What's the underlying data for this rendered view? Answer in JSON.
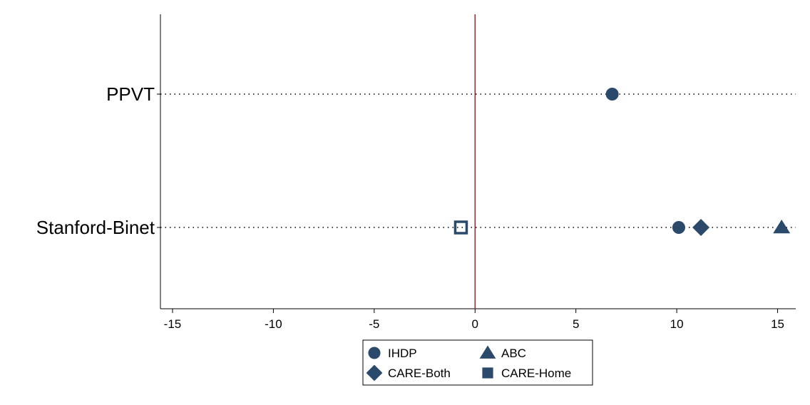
{
  "chart_data": {
    "type": "scatter",
    "categories": [
      "PPVT",
      "Stanford-Binet"
    ],
    "x_ticks": [
      -15,
      -10,
      -5,
      0,
      5,
      10,
      15
    ],
    "xlim": [
      -15.6,
      15.9
    ],
    "reference_line_x": 0,
    "reference_line_color": "#b2232a",
    "marker_color": "#2b4a6b",
    "grid": "dotted horizontal guides at each category",
    "legend_position": "bottom-center",
    "series": [
      {
        "name": "IHDP",
        "marker": "circle",
        "points": [
          {
            "category": "PPVT",
            "x": 6.8
          },
          {
            "category": "Stanford-Binet",
            "x": 10.1
          }
        ]
      },
      {
        "name": "ABC",
        "marker": "triangle",
        "points": [
          {
            "category": "Stanford-Binet",
            "x": 15.2
          }
        ]
      },
      {
        "name": "CARE-Both",
        "marker": "diamond",
        "points": [
          {
            "category": "Stanford-Binet",
            "x": 11.2
          }
        ]
      },
      {
        "name": "CARE-Home",
        "marker": "square",
        "points": [
          {
            "category": "Stanford-Binet",
            "x": -0.7
          }
        ]
      }
    ]
  }
}
